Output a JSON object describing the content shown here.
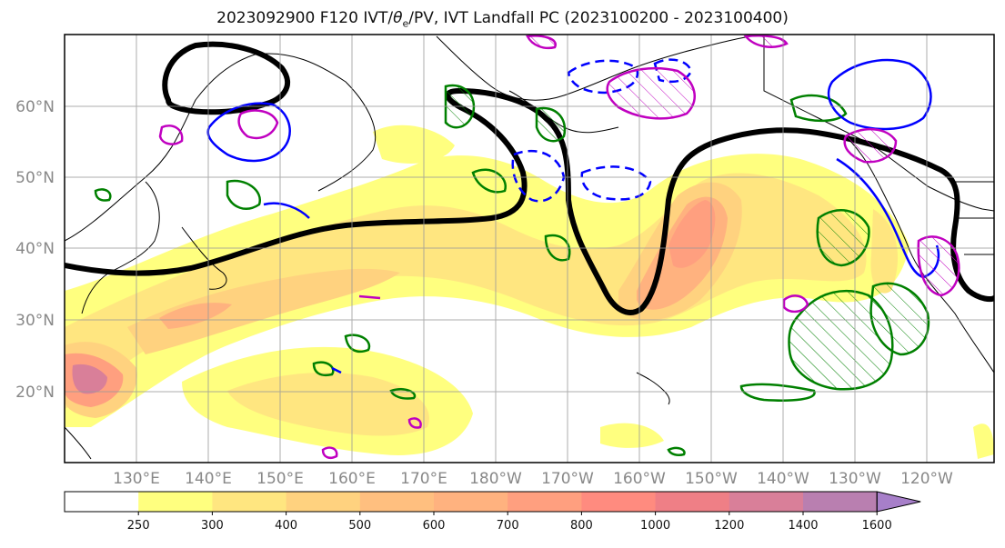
{
  "title": "2023092900 F120 IVT/θe/PV, IVT Landfall PC (2023100200 - 2023100400)",
  "title_parts": {
    "before": "2023092900 F120 IVT/",
    "theta": "θ",
    "sub": "e",
    "after": "/PV, IVT Landfall PC (2023100200 - 2023100400)"
  },
  "lat_labels": [
    "60°N",
    "50°N",
    "40°N",
    "30°N",
    "20°N"
  ],
  "lon_labels": [
    "130°E",
    "140°E",
    "150°E",
    "160°E",
    "170°E",
    "180°W",
    "170°W",
    "160°W",
    "150°W",
    "140°W",
    "130°W",
    "120°W"
  ],
  "colorbar": {
    "ticks": [
      "250",
      "300",
      "400",
      "500",
      "600",
      "700",
      "800",
      "1000",
      "1200",
      "1400",
      "1600"
    ],
    "colors": [
      "#ffffff",
      "#ffff7f",
      "#ffe680",
      "#ffd27f",
      "#ffbf7f",
      "#ffb27f",
      "#ff9f7f",
      "#ff8b7f",
      "#ef7f86",
      "#d97f99",
      "#b97fb0",
      "#a77fc9"
    ]
  },
  "colors": {
    "jet_contour": "#000000",
    "theta_e_contour": "#008000",
    "pv_contour": "#0000ff",
    "ivt_landfall_contour": "#c000c0"
  }
}
